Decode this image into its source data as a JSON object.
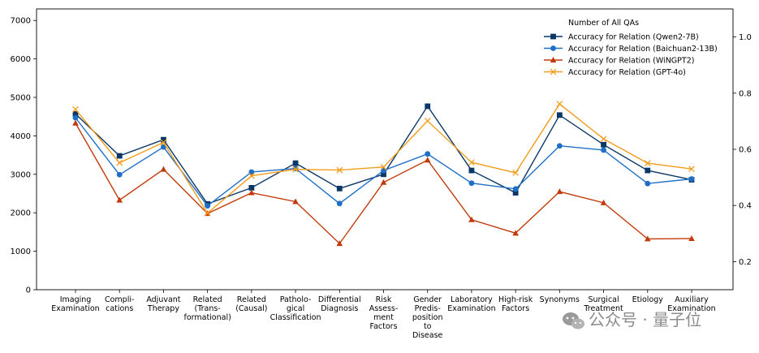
{
  "chart_data": {
    "type": "line",
    "categories": [
      "Imaging\nExamination",
      "Compli-\ncations",
      "Adjuvant\nTherapy",
      "Related\n(Trans-\nformational)",
      "Related\n(Causal)",
      "Patholo-\ngical\nClassification",
      "Differential\nDiagnosis",
      "Risk\nAssess-\nment\nFactors",
      "Gender\nPredis-\nposition\nto\nDisease",
      "Laboratory\nExamination",
      "High-risk\nFactors",
      "Synonyms",
      "Surgical\nTreatment",
      "Etiology",
      "Auxiliary\nExamination"
    ],
    "y_left": {
      "ylim": [
        0,
        7300
      ],
      "ticks": [
        0,
        1000,
        2000,
        3000,
        4000,
        5000,
        6000,
        7000
      ]
    },
    "y_right": {
      "ylim": [
        0.1,
        1.1
      ],
      "ticks": [
        0.2,
        0.4,
        0.6,
        0.8,
        1.0
      ],
      "tick_labels": [
        "0.2",
        "0.4",
        "0.6",
        "0.8",
        "1.0"
      ]
    },
    "legend": {
      "title": "Number of All QAs",
      "position": "top-right"
    },
    "grid": false,
    "series": [
      {
        "name": "Accuracy for Relation (Qwen2-7B)",
        "color": "#0b3766",
        "marker": "square",
        "values": [
          4570,
          3480,
          3900,
          2230,
          2650,
          3290,
          2630,
          3000,
          4770,
          3100,
          2520,
          4540,
          3770,
          3100,
          2860
        ]
      },
      {
        "name": "Accuracy for Relation (Baichuan2-13B)",
        "color": "#1f6fc7",
        "marker": "circle",
        "values": [
          4470,
          2990,
          3710,
          2180,
          3060,
          3150,
          2240,
          3100,
          3530,
          2770,
          2620,
          3740,
          3630,
          2760,
          2880
        ]
      },
      {
        "name": "Accuracy for Relation (WiNGPT2)",
        "color": "#c23a0b",
        "marker": "triangle",
        "values": [
          4330,
          2330,
          3130,
          1980,
          2520,
          2290,
          1200,
          2790,
          3370,
          1820,
          1470,
          2550,
          2260,
          1320,
          1330
        ]
      },
      {
        "name": "Accuracy for Relation (GPT-4o)",
        "color": "#f39c1c",
        "marker": "x",
        "values": [
          4690,
          3300,
          3830,
          1990,
          2960,
          3130,
          3110,
          3190,
          4390,
          3310,
          3040,
          4830,
          3920,
          3290,
          3140
        ]
      }
    ]
  },
  "watermark": {
    "text": "公众号 · 量子位",
    "icon": "wechat-icon"
  }
}
